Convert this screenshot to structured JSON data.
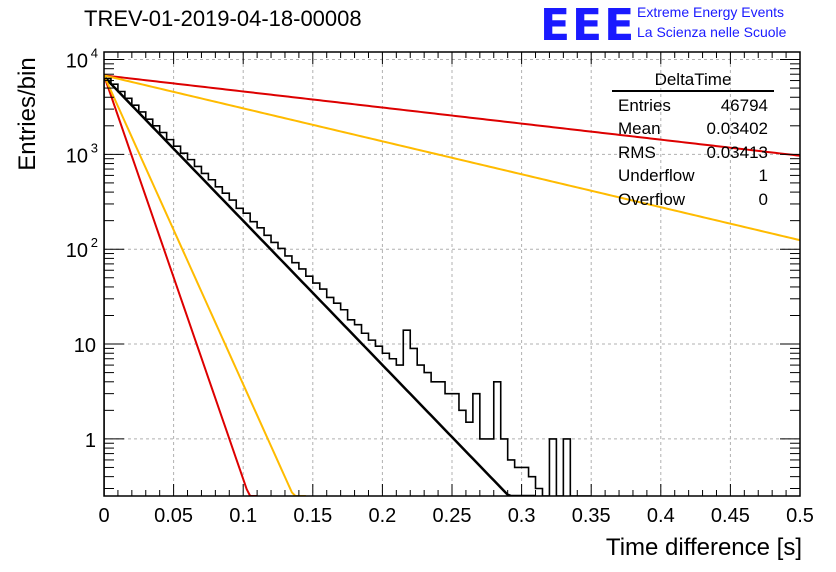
{
  "title": "TREV-01-2019-04-18-00008",
  "logo": {
    "text": "EEE",
    "line1": "Extreme Energy Events",
    "line2": "La Scienza nelle Scuole",
    "color": "#1a1aff"
  },
  "stats": {
    "name": "DeltaTime",
    "rows": [
      {
        "label": "Entries",
        "value": "46794"
      },
      {
        "label": "Mean",
        "value": "0.03402"
      },
      {
        "label": "RMS",
        "value": "0.03413"
      },
      {
        "label": "Underflow",
        "value": "1"
      },
      {
        "label": "Overflow",
        "value": "0"
      }
    ]
  },
  "chart_data": {
    "type": "line",
    "title": "TREV-01-2019-04-18-00008",
    "xlabel": "Time difference [s]",
    "ylabel": "Entries/bin",
    "xlim": [
      0,
      0.5
    ],
    "ylim": [
      0.25,
      12000
    ],
    "yscale": "log",
    "grid": true,
    "x_ticks": [
      "0",
      "0.05",
      "0.1",
      "0.15",
      "0.2",
      "0.25",
      "0.3",
      "0.35",
      "0.4",
      "0.45",
      "0.5"
    ],
    "y_ticks": [
      "1",
      "10",
      "10^2",
      "10^3",
      "10^4"
    ],
    "histogram": {
      "color": "#000000",
      "bin_width": 0.005,
      "x": [
        0.0025,
        0.0075,
        0.0125,
        0.0175,
        0.0225,
        0.0275,
        0.0325,
        0.0375,
        0.0425,
        0.0475,
        0.0525,
        0.0575,
        0.0625,
        0.0675,
        0.0725,
        0.0775,
        0.0825,
        0.0875,
        0.0925,
        0.0975,
        0.1025,
        0.1075,
        0.1125,
        0.1175,
        0.1225,
        0.1275,
        0.1325,
        0.1375,
        0.1425,
        0.1475,
        0.1525,
        0.1575,
        0.1625,
        0.1675,
        0.1725,
        0.1775,
        0.1825,
        0.1875,
        0.1925,
        0.1975,
        0.2025,
        0.2075,
        0.2125,
        0.2175,
        0.2225,
        0.2275,
        0.2325,
        0.2375,
        0.2425,
        0.2475,
        0.2525,
        0.2575,
        0.2625,
        0.2675,
        0.2725,
        0.2775,
        0.2825,
        0.2875,
        0.2925,
        0.2975,
        0.3025,
        0.3075,
        0.3125,
        0.3175,
        0.3225,
        0.3275,
        0.3325,
        0.3375,
        0.3425,
        0.3475
      ],
      "values": [
        6300,
        5500,
        4600,
        3900,
        3300,
        2800,
        2350,
        2000,
        1700,
        1430,
        1220,
        1030,
        880,
        745,
        630,
        540,
        455,
        390,
        330,
        270,
        240,
        195,
        168,
        140,
        118,
        102,
        85,
        72,
        62,
        52,
        44,
        38,
        31,
        27,
        23,
        18,
        16,
        13,
        11,
        9.5,
        8,
        7,
        6,
        14,
        9,
        6,
        5,
        4,
        4,
        3,
        3,
        2,
        1.5,
        3,
        1,
        1,
        4,
        1,
        0.6,
        0.5,
        0.5,
        0.4,
        0.3,
        0.25,
        1,
        0.25,
        1,
        0.25,
        0.25,
        0.25
      ]
    },
    "series": [
      {
        "color": "#000000",
        "amplitude": 6600,
        "slope": -35
      },
      {
        "color": "#dd0000",
        "amplitude": 6800,
        "slope": -3.9
      },
      {
        "color": "#dd0000",
        "amplitude": 6800,
        "slope": -98
      },
      {
        "color": "#ffbb00",
        "amplitude": 6800,
        "slope": -8
      },
      {
        "color": "#ffbb00",
        "amplitude": 6800,
        "slope": -75
      }
    ]
  }
}
